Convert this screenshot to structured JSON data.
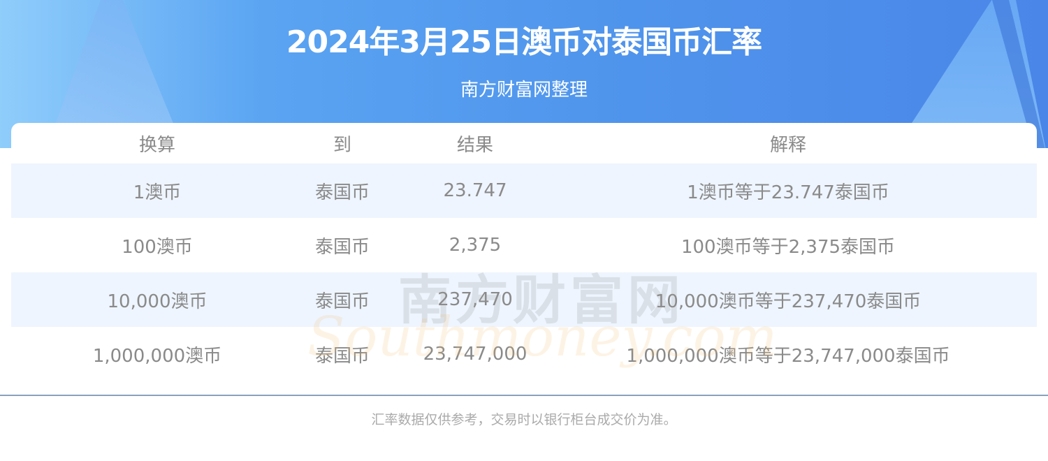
{
  "header": {
    "title": "2024年3月25日澳币对泰国币汇率",
    "subtitle": "南方财富网整理"
  },
  "table": {
    "columns": [
      "换算",
      "到",
      "结果",
      "解释"
    ],
    "rows": [
      [
        "1澳币",
        "泰国币",
        "23.747",
        "1澳币等于23.747泰国币"
      ],
      [
        "100澳币",
        "泰国币",
        "2,375",
        "100澳币等于2,375泰国币"
      ],
      [
        "10,000澳币",
        "泰国币",
        "237,470",
        "10,000澳币等于237,470泰国币"
      ],
      [
        "1,000,000澳币",
        "泰国币",
        "23,747,000",
        "1,000,000澳币等于23,747,000泰国币"
      ]
    ]
  },
  "watermark": {
    "cn": "南方财富网",
    "en": "Southmoney.com"
  },
  "footer": {
    "note": "汇率数据仅供参考，交易时以银行柜台成交价为准。"
  },
  "colors": {
    "banner": "#4f94ec",
    "row_alt": "#eef5fe",
    "text": "#8a8a8a",
    "divider": "#8aa0bd"
  }
}
